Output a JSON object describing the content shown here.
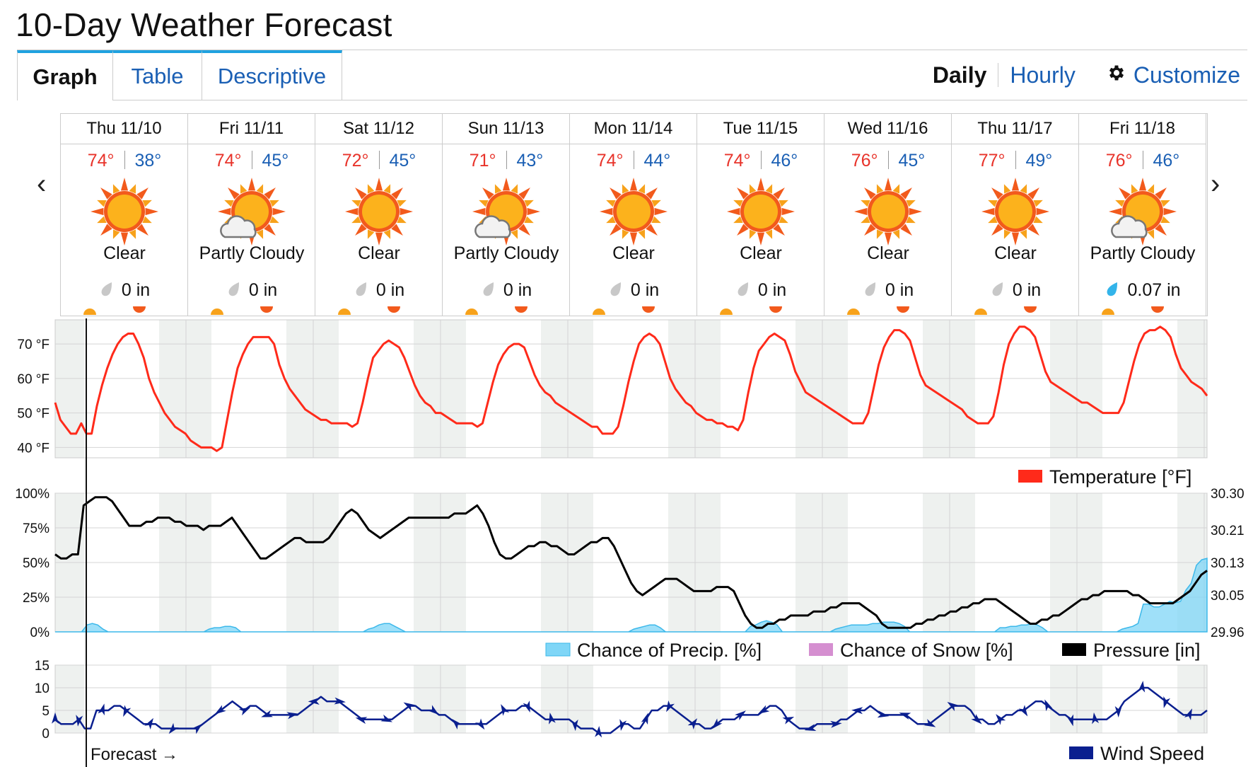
{
  "title": "10-Day Weather Forecast",
  "tabs": [
    {
      "label": "Graph",
      "active": true
    },
    {
      "label": "Table",
      "active": false
    },
    {
      "label": "Descriptive",
      "active": false
    }
  ],
  "view_links": {
    "daily": "Daily",
    "hourly": "Hourly",
    "customize": "Customize"
  },
  "days": [
    {
      "date": "Thu 11/10",
      "hi": "74°",
      "lo": "38°",
      "icon": "sun-icon",
      "condition": "Clear",
      "precip": "0 in"
    },
    {
      "date": "Fri 11/11",
      "hi": "74°",
      "lo": "45°",
      "icon": "partly-cloudy-icon",
      "condition": "Partly Cloudy",
      "precip": "0 in"
    },
    {
      "date": "Sat 11/12",
      "hi": "72°",
      "lo": "45°",
      "icon": "sun-icon",
      "condition": "Clear",
      "precip": "0 in"
    },
    {
      "date": "Sun 11/13",
      "hi": "71°",
      "lo": "43°",
      "icon": "partly-cloudy-icon",
      "condition": "Partly Cloudy",
      "precip": "0 in"
    },
    {
      "date": "Mon 11/14",
      "hi": "74°",
      "lo": "44°",
      "icon": "sun-icon",
      "condition": "Clear",
      "precip": "0 in"
    },
    {
      "date": "Tue 11/15",
      "hi": "74°",
      "lo": "46°",
      "icon": "sun-icon",
      "condition": "Clear",
      "precip": "0 in"
    },
    {
      "date": "Wed 11/16",
      "hi": "76°",
      "lo": "45°",
      "icon": "sun-icon",
      "condition": "Clear",
      "precip": "0 in"
    },
    {
      "date": "Thu 11/17",
      "hi": "77°",
      "lo": "49°",
      "icon": "sun-icon",
      "condition": "Clear",
      "precip": "0 in"
    },
    {
      "date": "Fri 11/18",
      "hi": "76°",
      "lo": "46°",
      "icon": "partly-cloudy-icon",
      "condition": "Partly Cloudy",
      "precip": "0.07 in"
    }
  ],
  "colors": {
    "temperature": "#ff2a1a",
    "precip": "#7fd6f7",
    "snow": "#d58fd0",
    "pressure": "#000000",
    "wind": "#0a1f8f",
    "hi": "#e8332a",
    "lo": "#1a5fb4",
    "link": "#1a5fb4"
  },
  "chart_data": [
    {
      "type": "line",
      "ylim": [
        37,
        77
      ],
      "yticks": [
        "40 °F",
        "50 °F",
        "60 °F",
        "70 °F"
      ],
      "ytick_values": [
        40,
        50,
        60,
        70
      ],
      "legend": [
        {
          "name": "Temperature [°F]",
          "color": "#ff2a1a"
        }
      ],
      "series": [
        {
          "name": "Temperature [°F]",
          "values": [
            53,
            48,
            46,
            44,
            44,
            47,
            44,
            44,
            52,
            58,
            63,
            67,
            70,
            72,
            73,
            73,
            70,
            66,
            60,
            56,
            53,
            50,
            48,
            46,
            45,
            44,
            42,
            41,
            40,
            40,
            40,
            39,
            40,
            48,
            56,
            63,
            67,
            70,
            72,
            72,
            72,
            72,
            70,
            64,
            60,
            57,
            55,
            53,
            51,
            50,
            49,
            48,
            48,
            47,
            47,
            47,
            47,
            46,
            47,
            53,
            60,
            66,
            68,
            70,
            71,
            70,
            69,
            66,
            62,
            58,
            55,
            53,
            52,
            50,
            50,
            49,
            48,
            47,
            47,
            47,
            47,
            46,
            47,
            53,
            59,
            64,
            67,
            69,
            70,
            70,
            69,
            65,
            61,
            58,
            56,
            55,
            53,
            52,
            51,
            50,
            49,
            48,
            47,
            46,
            46,
            44,
            44,
            44,
            46,
            52,
            59,
            65,
            70,
            72,
            73,
            72,
            70,
            65,
            60,
            57,
            55,
            53,
            52,
            50,
            49,
            48,
            48,
            47,
            47,
            46,
            46,
            45,
            48,
            56,
            63,
            68,
            70,
            72,
            73,
            72,
            71,
            67,
            62,
            59,
            56,
            55,
            54,
            53,
            52,
            51,
            50,
            49,
            48,
            47,
            47,
            47,
            50,
            57,
            64,
            69,
            72,
            74,
            74,
            73,
            71,
            66,
            61,
            58,
            57,
            56,
            55,
            54,
            53,
            52,
            51,
            49,
            48,
            47,
            47,
            47,
            49,
            56,
            64,
            70,
            73,
            75,
            75,
            74,
            72,
            67,
            62,
            59,
            58,
            57,
            56,
            55,
            54,
            53,
            53,
            52,
            51,
            50,
            50,
            50,
            50,
            53,
            59,
            65,
            70,
            73,
            74,
            74,
            75,
            74,
            72,
            67,
            63,
            61,
            59,
            58,
            57,
            55
          ]
        }
      ]
    },
    {
      "type": "line",
      "ylim_left": [
        0,
        100
      ],
      "yticks_left": [
        "0%",
        "25%",
        "50%",
        "75%",
        "100%"
      ],
      "ytick_left_values": [
        0,
        25,
        50,
        75,
        100
      ],
      "ylim_right": [
        29.96,
        30.3
      ],
      "yticks_right": [
        "29.96",
        "30.05",
        "30.13",
        "30.21",
        "30.30"
      ],
      "ytick_right_values": [
        29.96,
        30.05,
        30.13,
        30.21,
        30.3
      ],
      "legend": [
        {
          "name": "Chance of Precip. [%]",
          "color": "#7fd6f7"
        },
        {
          "name": "Chance of Snow [%]",
          "color": "#d58fd0"
        },
        {
          "name": "Pressure [in]",
          "color": "#000000"
        }
      ],
      "series": [
        {
          "name": "Chance of Precip. [%]",
          "axis": "left",
          "values": [
            0,
            0,
            0,
            0,
            0,
            0,
            5,
            6,
            5,
            2,
            0,
            0,
            0,
            0,
            0,
            0,
            0,
            0,
            0,
            0,
            0,
            0,
            0,
            0,
            0,
            0,
            0,
            0,
            0,
            2,
            3,
            3,
            4,
            4,
            3,
            0,
            0,
            0,
            0,
            0,
            0,
            0,
            0,
            0,
            0,
            0,
            0,
            0,
            0,
            0,
            0,
            0,
            0,
            0,
            0,
            0,
            0,
            0,
            0,
            2,
            3,
            5,
            6,
            6,
            4,
            2,
            0,
            0,
            0,
            0,
            0,
            0,
            0,
            0,
            0,
            0,
            0,
            0,
            0,
            0,
            0,
            0,
            0,
            0,
            0,
            0,
            0,
            0,
            0,
            0,
            0,
            0,
            0,
            0,
            0,
            0,
            0,
            0,
            0,
            0,
            0,
            0,
            0,
            0,
            0,
            0,
            0,
            0,
            0,
            2,
            3,
            4,
            5,
            5,
            3,
            0,
            0,
            0,
            0,
            0,
            0,
            0,
            0,
            0,
            0,
            0,
            0,
            0,
            0,
            0,
            0,
            4,
            5,
            7,
            8,
            7,
            5,
            0,
            0,
            0,
            0,
            0,
            0,
            0,
            0,
            0,
            0,
            2,
            3,
            4,
            5,
            5,
            5,
            5,
            6,
            6,
            7,
            7,
            7,
            6,
            4,
            0,
            0,
            0,
            0,
            0,
            0,
            0,
            0,
            0,
            0,
            0,
            0,
            0,
            0,
            0,
            0,
            0,
            3,
            3,
            4,
            4,
            5,
            5,
            6,
            5,
            3,
            0,
            0,
            0,
            0,
            0,
            0,
            0,
            0,
            0,
            0,
            0,
            0,
            0,
            0,
            2,
            3,
            4,
            6,
            20,
            20,
            18,
            18,
            20,
            22,
            21,
            22,
            30,
            35,
            48,
            52,
            53
          ]
        },
        {
          "name": "Chance of Snow [%]",
          "axis": "left",
          "values": []
        },
        {
          "name": "Pressure [in]",
          "axis": "right",
          "values": [
            30.15,
            30.14,
            30.14,
            30.15,
            30.15,
            30.27,
            30.28,
            30.29,
            30.29,
            30.29,
            30.28,
            30.26,
            30.24,
            30.22,
            30.22,
            30.22,
            30.23,
            30.23,
            30.24,
            30.24,
            30.24,
            30.23,
            30.23,
            30.22,
            30.22,
            30.22,
            30.21,
            30.22,
            30.22,
            30.22,
            30.23,
            30.24,
            30.22,
            30.2,
            30.18,
            30.16,
            30.14,
            30.14,
            30.15,
            30.16,
            30.17,
            30.18,
            30.19,
            30.19,
            30.18,
            30.18,
            30.18,
            30.18,
            30.19,
            30.21,
            30.23,
            30.25,
            30.26,
            30.25,
            30.23,
            30.21,
            30.2,
            30.19,
            30.2,
            30.21,
            30.22,
            30.23,
            30.24,
            30.24,
            30.24,
            30.24,
            30.24,
            30.24,
            30.24,
            30.24,
            30.25,
            30.25,
            30.25,
            30.26,
            30.27,
            30.25,
            30.22,
            30.18,
            30.15,
            30.14,
            30.14,
            30.15,
            30.16,
            30.17,
            30.17,
            30.18,
            30.18,
            30.17,
            30.17,
            30.16,
            30.15,
            30.15,
            30.16,
            30.17,
            30.18,
            30.18,
            30.19,
            30.19,
            30.17,
            30.14,
            30.11,
            30.08,
            30.06,
            30.05,
            30.06,
            30.07,
            30.08,
            30.09,
            30.09,
            30.09,
            30.08,
            30.07,
            30.06,
            30.06,
            30.06,
            30.06,
            30.07,
            30.07,
            30.07,
            30.06,
            30.03,
            30.0,
            29.98,
            29.97,
            29.97,
            29.98,
            29.98,
            29.99,
            29.99,
            30.0,
            30.0,
            30.0,
            30.0,
            30.01,
            30.01,
            30.01,
            30.02,
            30.02,
            30.03,
            30.03,
            30.03,
            30.03,
            30.02,
            30.01,
            30.0,
            29.98,
            29.97,
            29.97,
            29.97,
            29.97,
            29.97,
            29.98,
            29.98,
            29.99,
            29.99,
            30.0,
            30.0,
            30.01,
            30.01,
            30.02,
            30.02,
            30.03,
            30.03,
            30.04,
            30.04,
            30.04,
            30.03,
            30.02,
            30.01,
            30.0,
            29.99,
            29.98,
            29.98,
            29.99,
            29.99,
            30.0,
            30.0,
            30.01,
            30.02,
            30.03,
            30.04,
            30.04,
            30.05,
            30.05,
            30.06,
            30.06,
            30.06,
            30.06,
            30.06,
            30.05,
            30.05,
            30.04,
            30.03,
            30.03,
            30.03,
            30.03,
            30.03,
            30.04,
            30.05,
            30.06,
            30.08,
            30.1,
            30.11
          ]
        }
      ]
    },
    {
      "type": "line",
      "ylim": [
        0,
        15
      ],
      "yticks": [
        "0",
        "5",
        "10",
        "15"
      ],
      "ytick_values": [
        0,
        5,
        10,
        15
      ],
      "legend": [
        {
          "name": "Wind Speed",
          "color": "#0a1f8f"
        }
      ],
      "annotation": "Forecast →",
      "series": [
        {
          "name": "Wind Speed",
          "values": [
            3,
            2,
            2,
            2,
            3,
            1,
            1,
            5,
            5,
            5,
            6,
            6,
            5,
            4,
            3,
            2,
            2,
            2,
            1,
            1,
            1,
            1,
            1,
            1,
            1,
            2,
            3,
            4,
            5,
            6,
            7,
            6,
            5,
            6,
            6,
            5,
            4,
            4,
            4,
            4,
            4,
            4,
            5,
            6,
            7,
            8,
            7,
            7,
            7,
            6,
            5,
            4,
            3,
            3,
            3,
            3,
            3,
            3,
            4,
            5,
            6,
            6,
            5,
            5,
            5,
            4,
            4,
            3,
            2,
            2,
            2,
            2,
            2,
            2,
            3,
            4,
            5,
            5,
            5,
            6,
            6,
            5,
            4,
            3,
            3,
            3,
            3,
            3,
            2,
            1,
            1,
            1,
            0,
            0,
            0,
            1,
            2,
            2,
            1,
            1,
            3,
            5,
            5,
            6,
            6,
            5,
            4,
            3,
            2,
            2,
            1,
            1,
            2,
            3,
            3,
            3,
            4,
            4,
            4,
            4,
            5,
            6,
            6,
            5,
            3,
            2,
            1,
            1,
            1,
            2,
            2,
            2,
            2,
            3,
            3,
            4,
            5,
            5,
            6,
            5,
            4,
            4,
            4,
            4,
            4,
            3,
            2,
            2,
            2,
            3,
            4,
            5,
            6,
            6,
            6,
            5,
            3,
            3,
            2,
            2,
            3,
            4,
            4,
            5,
            5,
            6,
            7,
            7,
            6,
            5,
            4,
            4,
            3,
            3,
            3,
            3,
            3,
            3,
            3,
            4,
            5,
            7,
            8,
            9,
            10,
            10,
            9,
            8,
            7,
            6,
            5,
            4,
            4,
            4,
            4,
            5
          ]
        }
      ]
    }
  ]
}
